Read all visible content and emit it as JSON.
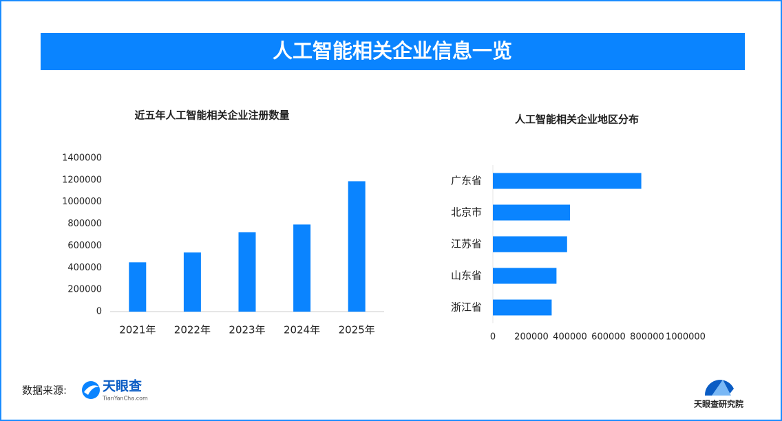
{
  "header": {
    "title": "人工智能相关企业信息一览"
  },
  "chart_data": [
    {
      "type": "bar",
      "title": "近五年人工智能相关企业注册数量",
      "categories": [
        "2021年",
        "2022年",
        "2023年",
        "2024年",
        "2025年"
      ],
      "values": [
        450000,
        540000,
        725000,
        795000,
        1190000
      ],
      "color": "#0a84ff",
      "ylim": [
        0,
        1400000
      ],
      "yticks": [
        0,
        200000,
        400000,
        600000,
        800000,
        1000000,
        1200000,
        1400000
      ]
    },
    {
      "type": "barh",
      "title": "人工智能相关企业地区分布",
      "categories": [
        "广东省",
        "北京市",
        "江苏省",
        "山东省",
        "浙江省"
      ],
      "values": [
        770000,
        400000,
        385000,
        330000,
        305000
      ],
      "color": "#0a84ff",
      "xlim": [
        0,
        1000000
      ],
      "xticks": [
        0,
        200000,
        400000,
        600000,
        800000,
        1000000
      ]
    }
  ],
  "footer": {
    "source_label": "数据来源:",
    "logo_text": "天眼查",
    "logo_sub": "TianYanCha.com",
    "brand": "天眼查研究院"
  }
}
